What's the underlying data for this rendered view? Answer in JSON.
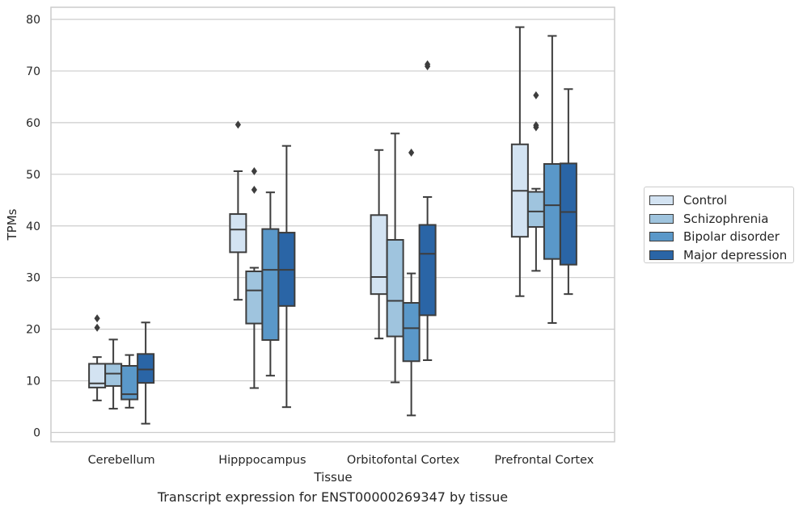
{
  "chart_data": {
    "type": "box",
    "xlabel": "Tissue",
    "ylabel": "TPMs",
    "ylim": [
      -2,
      82
    ],
    "yticks": [
      0,
      10,
      20,
      30,
      40,
      50,
      60,
      70,
      80
    ],
    "grid": "horizontal",
    "legend_position": "right",
    "categories": [
      "Cerebellum",
      "Hipppocampus",
      "Orbitofontal Cortex",
      "Prefrontal Cortex"
    ],
    "series": [
      {
        "name": "Control",
        "color": "#d3e3f2",
        "boxes": [
          {
            "whislo": 6.2,
            "q1": 8.7,
            "med": 9.5,
            "q3": 13.3,
            "whishi": 14.6,
            "fliers": [
              20.3,
              22.1
            ]
          },
          {
            "whislo": 25.7,
            "q1": 34.9,
            "med": 39.3,
            "q3": 42.3,
            "whishi": 50.6,
            "fliers": [
              59.6
            ]
          },
          {
            "whislo": 18.2,
            "q1": 26.8,
            "med": 30.1,
            "q3": 42.1,
            "whishi": 54.7,
            "fliers": []
          },
          {
            "whislo": 26.4,
            "q1": 37.9,
            "med": 46.8,
            "q3": 55.8,
            "whishi": 78.5,
            "fliers": []
          }
        ]
      },
      {
        "name": "Schizophrenia",
        "color": "#9fc4de",
        "boxes": [
          {
            "whislo": 4.6,
            "q1": 9.0,
            "med": 11.4,
            "q3": 13.3,
            "whishi": 18.0,
            "fliers": []
          },
          {
            "whislo": 8.6,
            "q1": 21.1,
            "med": 27.5,
            "q3": 31.2,
            "whishi": 31.9,
            "fliers": [
              47.0,
              50.6
            ]
          },
          {
            "whislo": 9.7,
            "q1": 18.6,
            "med": 25.5,
            "q3": 37.3,
            "whishi": 57.9,
            "fliers": []
          },
          {
            "whislo": 31.3,
            "q1": 39.8,
            "med": 42.8,
            "q3": 46.6,
            "whishi": 47.2,
            "fliers": [
              59.1,
              59.5,
              65.3
            ]
          }
        ]
      },
      {
        "name": "Bipolar disorder",
        "color": "#5a98c9",
        "boxes": [
          {
            "whislo": 4.8,
            "q1": 6.4,
            "med": 7.4,
            "q3": 12.9,
            "whishi": 15.0,
            "fliers": []
          },
          {
            "whislo": 11.0,
            "q1": 17.9,
            "med": 31.5,
            "q3": 39.4,
            "whishi": 46.5,
            "fliers": []
          },
          {
            "whislo": 3.3,
            "q1": 13.8,
            "med": 20.2,
            "q3": 25.1,
            "whishi": 30.8,
            "fliers": [
              54.2
            ]
          },
          {
            "whislo": 21.2,
            "q1": 33.6,
            "med": 44.0,
            "q3": 52.0,
            "whishi": 76.8,
            "fliers": []
          }
        ]
      },
      {
        "name": "Major depression",
        "color": "#2a65a6",
        "boxes": [
          {
            "whislo": 1.7,
            "q1": 9.6,
            "med": 12.2,
            "q3": 15.2,
            "whishi": 21.3,
            "fliers": []
          },
          {
            "whislo": 4.9,
            "q1": 24.5,
            "med": 31.5,
            "q3": 38.7,
            "whishi": 55.5,
            "fliers": []
          },
          {
            "whislo": 14.0,
            "q1": 22.7,
            "med": 34.6,
            "q3": 40.2,
            "whishi": 45.6,
            "fliers": [
              70.9,
              71.3
            ]
          },
          {
            "whislo": 26.8,
            "q1": 32.5,
            "med": 42.7,
            "q3": 52.1,
            "whishi": 66.5,
            "fliers": []
          }
        ]
      }
    ],
    "caption": "Transcript expression for ENST00000269347 by tissue"
  }
}
